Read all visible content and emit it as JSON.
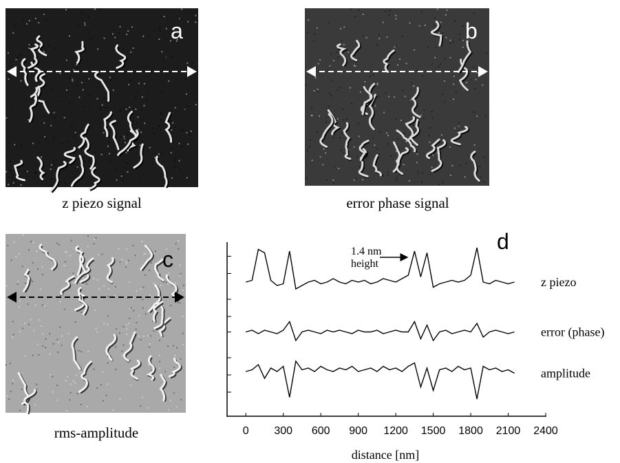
{
  "panels": [
    {
      "label": "a",
      "caption": "z piezo signal"
    },
    {
      "label": "b",
      "caption": "error phase signal"
    },
    {
      "label": "c",
      "caption": "rms-amplitude"
    }
  ],
  "chart_data": {
    "type": "line",
    "panel_label": "d",
    "xlabel": "distance [nm]",
    "annotation": [
      "1.4 nm",
      "height"
    ],
    "x": [
      0,
      50,
      100,
      150,
      200,
      250,
      300,
      350,
      400,
      450,
      500,
      550,
      600,
      650,
      700,
      750,
      800,
      850,
      900,
      950,
      1000,
      1050,
      1100,
      1150,
      1200,
      1250,
      1300,
      1350,
      1400,
      1450,
      1500,
      1550,
      1600,
      1650,
      1700,
      1750,
      1800,
      1850,
      1900,
      1950,
      2000,
      2050,
      2100,
      2150
    ],
    "series": [
      {
        "name": "z piezo",
        "color": "#000000",
        "values": [
          7.8,
          7.9,
          9.7,
          9.5,
          7.9,
          7.6,
          7.7,
          9.6,
          7.4,
          7.6,
          7.8,
          7.9,
          7.7,
          7.8,
          8.0,
          7.8,
          7.7,
          7.9,
          7.8,
          7.9,
          7.7,
          7.8,
          8.0,
          7.9,
          7.8,
          8.0,
          8.2,
          9.6,
          8.1,
          9.5,
          7.5,
          7.7,
          7.8,
          7.9,
          7.8,
          7.9,
          8.2,
          9.8,
          7.8,
          7.7,
          7.9,
          7.8,
          7.7,
          7.8
        ]
      },
      {
        "name": "error (phase)",
        "color": "#000000",
        "values": [
          4.9,
          5.0,
          4.8,
          5.0,
          4.9,
          4.8,
          5.0,
          5.5,
          4.4,
          4.9,
          5.0,
          4.9,
          4.8,
          5.0,
          4.9,
          5.0,
          4.9,
          4.8,
          5.0,
          4.9,
          4.9,
          5.0,
          4.8,
          4.9,
          5.0,
          4.9,
          4.9,
          5.5,
          4.5,
          5.3,
          4.4,
          4.9,
          5.0,
          4.8,
          4.9,
          5.0,
          4.9,
          5.4,
          4.6,
          4.9,
          5.0,
          4.9,
          4.8,
          4.9
        ]
      },
      {
        "name": "amplitude",
        "color": "#000000",
        "values": [
          2.6,
          2.7,
          3.0,
          2.2,
          2.8,
          2.6,
          2.9,
          1.1,
          3.2,
          2.7,
          2.8,
          2.6,
          2.9,
          2.7,
          2.6,
          2.8,
          2.7,
          2.9,
          2.6,
          2.7,
          2.8,
          2.6,
          2.9,
          2.7,
          2.8,
          2.6,
          2.9,
          3.1,
          1.7,
          2.8,
          1.5,
          2.7,
          2.8,
          2.6,
          2.9,
          2.7,
          2.8,
          1.0,
          2.9,
          2.7,
          2.8,
          2.6,
          2.7,
          2.5
        ]
      }
    ],
    "xlim": [
      -150,
      2400
    ],
    "xticks": [
      0,
      300,
      600,
      900,
      1200,
      1500,
      1800,
      2100,
      2400
    ],
    "ylim": [
      0,
      10
    ],
    "yticks": [
      1.4,
      2.4,
      3.4,
      4.9,
      5.8,
      6.8,
      8.3,
      9.3
    ]
  }
}
